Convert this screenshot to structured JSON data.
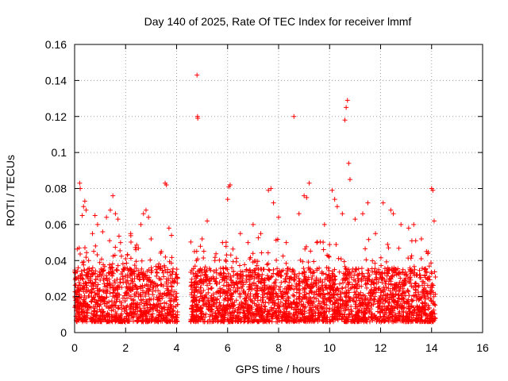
{
  "chart_data": {
    "type": "scatter",
    "title": "Day 140 of 2025, Rate Of TEC Index for receiver lmmf",
    "xlabel": "GPS time / hours",
    "ylabel": "ROTI / TECUs",
    "xlim": [
      0,
      16
    ],
    "ylim": [
      0,
      0.16
    ],
    "xticks": [
      "0",
      "2",
      "4",
      "6",
      "8",
      "10",
      "12",
      "14",
      "16"
    ],
    "yticks": [
      "0",
      "0.02",
      "0.04",
      "0.06",
      "0.08",
      "0.1",
      "0.12",
      "0.14",
      "0.16"
    ],
    "grid": true,
    "marker": "+",
    "color": "#ff0000",
    "series": [
      {
        "name": "ROTI",
        "points": [
          [
            0.05,
            0.018
          ],
          [
            0.1,
            0.022
          ],
          [
            0.15,
            0.03
          ],
          [
            0.2,
            0.083
          ],
          [
            0.22,
            0.08
          ],
          [
            0.3,
            0.065
          ],
          [
            0.35,
            0.07
          ],
          [
            0.4,
            0.073
          ],
          [
            0.45,
            0.068
          ],
          [
            0.55,
            0.04
          ],
          [
            0.7,
            0.055
          ],
          [
            0.8,
            0.065
          ],
          [
            0.9,
            0.06
          ],
          [
            1.1,
            0.056
          ],
          [
            1.25,
            0.064
          ],
          [
            1.4,
            0.068
          ],
          [
            1.5,
            0.076
          ],
          [
            1.6,
            0.066
          ],
          [
            1.7,
            0.063
          ],
          [
            1.8,
            0.05
          ],
          [
            2.0,
            0.041
          ],
          [
            2.2,
            0.055
          ],
          [
            2.4,
            0.046
          ],
          [
            2.6,
            0.06
          ],
          [
            2.7,
            0.066
          ],
          [
            2.8,
            0.068
          ],
          [
            2.9,
            0.064
          ],
          [
            3.0,
            0.052
          ],
          [
            3.2,
            0.035
          ],
          [
            3.4,
            0.045
          ],
          [
            3.55,
            0.083
          ],
          [
            3.6,
            0.082
          ],
          [
            3.7,
            0.058
          ],
          [
            3.8,
            0.054
          ],
          [
            3.95,
            0.03
          ],
          [
            4.7,
            0.045
          ],
          [
            4.8,
            0.143
          ],
          [
            4.82,
            0.12
          ],
          [
            4.83,
            0.119
          ],
          [
            5.0,
            0.052
          ],
          [
            5.2,
            0.062
          ],
          [
            5.5,
            0.04
          ],
          [
            5.8,
            0.05
          ],
          [
            6.0,
            0.074
          ],
          [
            6.05,
            0.081
          ],
          [
            6.1,
            0.082
          ],
          [
            6.5,
            0.055
          ],
          [
            6.8,
            0.05
          ],
          [
            7.0,
            0.06
          ],
          [
            7.3,
            0.055
          ],
          [
            7.6,
            0.079
          ],
          [
            7.7,
            0.08
          ],
          [
            7.8,
            0.072
          ],
          [
            8.0,
            0.064
          ],
          [
            8.3,
            0.05
          ],
          [
            8.6,
            0.12
          ],
          [
            8.8,
            0.066
          ],
          [
            9.0,
            0.076
          ],
          [
            9.1,
            0.075
          ],
          [
            9.2,
            0.083
          ],
          [
            9.5,
            0.05
          ],
          [
            9.8,
            0.06
          ],
          [
            10.1,
            0.079
          ],
          [
            10.2,
            0.074
          ],
          [
            10.3,
            0.07
          ],
          [
            10.5,
            0.066
          ],
          [
            10.6,
            0.118
          ],
          [
            10.65,
            0.125
          ],
          [
            10.7,
            0.129
          ],
          [
            10.75,
            0.094
          ],
          [
            10.8,
            0.085
          ],
          [
            11.0,
            0.063
          ],
          [
            11.3,
            0.066
          ],
          [
            11.5,
            0.072
          ],
          [
            11.8,
            0.055
          ],
          [
            12.1,
            0.072
          ],
          [
            12.4,
            0.068
          ],
          [
            12.5,
            0.066
          ],
          [
            12.8,
            0.06
          ],
          [
            13.1,
            0.058
          ],
          [
            13.3,
            0.06
          ],
          [
            13.6,
            0.052
          ],
          [
            13.8,
            0.045
          ],
          [
            14.0,
            0.08
          ],
          [
            14.05,
            0.079
          ],
          [
            14.1,
            0.062
          ]
        ]
      }
    ]
  }
}
